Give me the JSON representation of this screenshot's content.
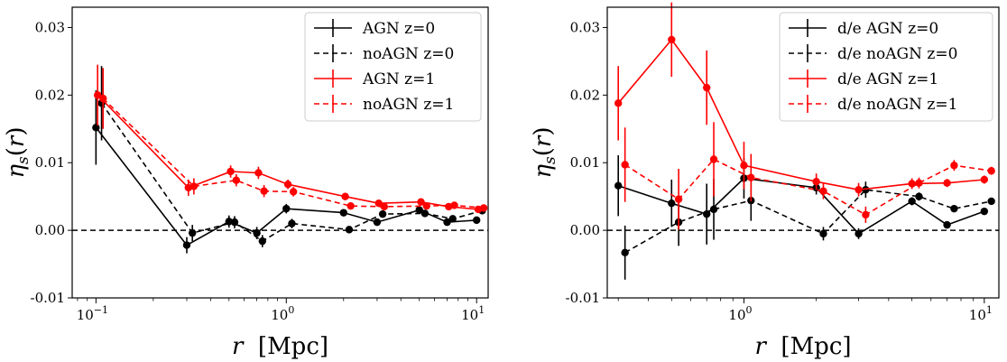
{
  "chart_data": [
    {
      "type": "line",
      "xscale": "log",
      "xlim": [
        0.075,
        11.5
      ],
      "ylim": [
        -0.01,
        0.033
      ],
      "xlabel": "r  [Mpc]",
      "ylabel": "ηs(r)",
      "xticks": [
        {
          "value": 0.1,
          "base": "10",
          "exp": "−1"
        },
        {
          "value": 1,
          "base": "10",
          "exp": "0"
        },
        {
          "value": 10,
          "base": "10",
          "exp": "1"
        }
      ],
      "yticks": [
        {
          "value": -0.01,
          "label": "-0.01"
        },
        {
          "value": 0.0,
          "label": "0.00"
        },
        {
          "value": 0.01,
          "label": "0.01"
        },
        {
          "value": 0.02,
          "label": "0.02"
        },
        {
          "value": 0.03,
          "label": "0.03"
        }
      ],
      "reference_line": 0,
      "legend_position": "top-right",
      "series": [
        {
          "name": "AGN  z=0",
          "color": "#000000",
          "dash": "solid",
          "x": [
            0.1,
            0.3,
            0.5,
            0.7,
            1.0,
            2.0,
            3.0,
            5.0,
            7.0,
            10.0
          ],
          "y": [
            0.0152,
            -0.0022,
            0.0013,
            -0.0004,
            0.0032,
            0.0026,
            0.0012,
            0.003,
            0.0012,
            0.0015
          ],
          "err": [
            0.0055,
            0.0012,
            0.0009,
            0.0009,
            0.0007,
            0.0004,
            0.0004,
            0.0004,
            0.0004,
            0.0004
          ]
        },
        {
          "name": "noAGN  z=0",
          "color": "#000000",
          "dash": "dashed",
          "x": [
            0.107,
            0.321,
            0.535,
            0.749,
            1.07,
            2.14,
            3.21,
            5.35,
            7.49,
            10.7
          ],
          "y": [
            0.0188,
            -0.0004,
            0.0012,
            -0.0016,
            0.001,
            0.0001,
            0.0024,
            0.0025,
            0.0017,
            0.0029
          ],
          "err": [
            0.0055,
            0.0012,
            0.0009,
            0.0009,
            0.0007,
            0.0004,
            0.0004,
            0.0004,
            0.0004,
            0.0004
          ]
        },
        {
          "name": "AGN  z=1",
          "color": "#ff0000",
          "dash": "solid",
          "x": [
            0.102,
            0.306,
            0.51,
            0.714,
            1.02,
            2.04,
            3.06,
            5.1,
            7.14,
            10.2
          ],
          "y": [
            0.02,
            0.0063,
            0.0087,
            0.0085,
            0.0068,
            0.005,
            0.004,
            0.0042,
            0.0035,
            0.0031
          ],
          "err": [
            0.0045,
            0.0012,
            0.0009,
            0.0009,
            0.0007,
            0.0004,
            0.0004,
            0.0004,
            0.0004,
            0.0004
          ]
        },
        {
          "name": "noAGN  z=1",
          "color": "#ff0000",
          "dash": "dashed",
          "x": [
            0.109,
            0.327,
            0.546,
            0.764,
            1.09,
            2.18,
            3.27,
            5.46,
            7.64,
            10.9
          ],
          "y": [
            0.0195,
            0.0065,
            0.0074,
            0.0058,
            0.0057,
            0.0036,
            0.0035,
            0.0036,
            0.0037,
            0.0033
          ],
          "err": [
            0.0045,
            0.0012,
            0.0009,
            0.0009,
            0.0007,
            0.0004,
            0.0004,
            0.0004,
            0.0004,
            0.0004
          ]
        }
      ]
    },
    {
      "type": "line",
      "xscale": "log",
      "xlim": [
        0.27,
        11.5
      ],
      "ylim": [
        -0.01,
        0.033
      ],
      "xlabel": "r  [Mpc]",
      "ylabel": "ηs(r)",
      "xticks": [
        {
          "value": 1,
          "base": "10",
          "exp": "0"
        },
        {
          "value": 10,
          "base": "10",
          "exp": "1"
        }
      ],
      "yticks": [
        {
          "value": -0.01,
          "label": "-0.01"
        },
        {
          "value": 0.0,
          "label": "0.00"
        },
        {
          "value": 0.01,
          "label": "0.01"
        },
        {
          "value": 0.02,
          "label": "0.02"
        },
        {
          "value": 0.03,
          "label": "0.03"
        }
      ],
      "reference_line": 0,
      "legend_position": "top-right",
      "series": [
        {
          "name": "d/e  AGN  z=0",
          "color": "#000000",
          "dash": "solid",
          "x": [
            0.3,
            0.5,
            0.7,
            1.0,
            2.0,
            3.0,
            5.0,
            7.0,
            10.0
          ],
          "y": [
            0.0066,
            0.004,
            0.0024,
            0.0077,
            0.0063,
            -0.0005,
            0.0043,
            0.0008,
            0.0028
          ],
          "err": [
            0.0045,
            0.0035,
            0.0045,
            0.003,
            0.001,
            0.0008,
            0.0006,
            0.0005,
            0.0005
          ]
        },
        {
          "name": "d/e  noAGN  z=0",
          "color": "#000000",
          "dash": "dashed",
          "x": [
            0.32,
            0.535,
            0.749,
            1.07,
            2.14,
            3.21,
            5.35,
            7.49,
            10.7
          ],
          "y": [
            -0.0033,
            0.0012,
            0.0031,
            0.0044,
            -0.0005,
            0.006,
            0.005,
            0.0032,
            0.0043
          ],
          "err": [
            0.004,
            0.0035,
            0.0045,
            0.003,
            0.001,
            0.0012,
            0.0006,
            0.0005,
            0.0005
          ]
        },
        {
          "name": "d/e  AGN  z=1",
          "color": "#ff0000",
          "dash": "solid",
          "x": [
            0.3,
            0.5,
            0.7,
            1.0,
            2.0,
            3.0,
            5.0,
            7.0,
            10.0
          ],
          "y": [
            0.0188,
            0.0282,
            0.0211,
            0.0096,
            0.0072,
            0.006,
            0.0069,
            0.007,
            0.0075
          ],
          "err": [
            0.0055,
            0.0055,
            0.0055,
            0.0035,
            0.0012,
            0.001,
            0.0008,
            0.0006,
            0.0006
          ]
        },
        {
          "name": "d/e  noAGN  z=1",
          "color": "#ff0000",
          "dash": "dashed",
          "x": [
            0.32,
            0.535,
            0.749,
            1.07,
            2.14,
            3.21,
            5.35,
            7.49,
            10.7
          ],
          "y": [
            0.0097,
            0.0046,
            0.0105,
            0.0078,
            0.0058,
            0.0023,
            0.007,
            0.0096,
            0.0088
          ],
          "err": [
            0.0055,
            0.0045,
            0.0055,
            0.0035,
            0.0012,
            0.0012,
            0.0008,
            0.0008,
            0.0006
          ]
        }
      ]
    }
  ]
}
